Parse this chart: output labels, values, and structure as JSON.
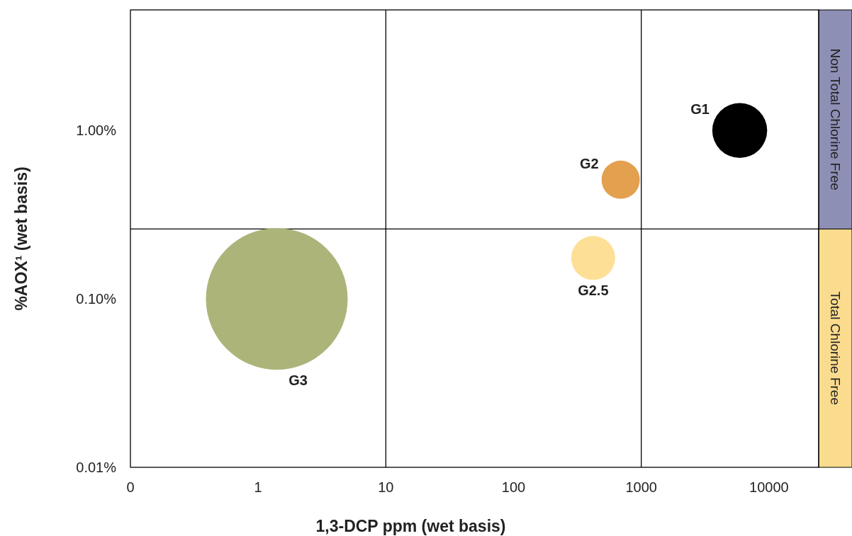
{
  "chart_data": {
    "type": "bubble",
    "xlabel": "1,3-DCP ppm (wet basis)",
    "ylabel": "%AOX¹ (wet basis)",
    "log": "xy",
    "grid": false,
    "marker": "circle",
    "xlim": [
      0.1,
      24500
    ],
    "xticks": [
      {
        "value": 0.1,
        "label": "0"
      },
      1,
      10,
      100,
      1000,
      10000
    ],
    "ylim": [
      0.01,
      5.2
    ],
    "yticks": [
      {
        "value": 0.01,
        "label": "0.01%"
      },
      {
        "value": 0.1,
        "label": "0.10%"
      },
      {
        "value": 1,
        "label": "1.00%"
      }
    ],
    "series": [
      {
        "name": "G1",
        "color": "#000000",
        "x": [
          5900
        ],
        "values": [
          1.0
        ],
        "sizes": [
          0.15
        ]
      },
      {
        "name": "G2",
        "color": "#e3a04f",
        "x": [
          690
        ],
        "values": [
          0.51
        ],
        "sizes": [
          0.073
        ]
      },
      {
        "name": "G2.5",
        "color": "#fddf96",
        "x": [
          420
        ],
        "values": [
          0.175
        ],
        "sizes": [
          0.096
        ]
      },
      {
        "name": "G3",
        "color": "#adb47a",
        "x": [
          1.4
        ],
        "values": [
          0.1
        ],
        "sizes": [
          1
        ]
      }
    ],
    "ref_lines": [
      {
        "axis": "x",
        "value": 10,
        "color": "#000000"
      },
      {
        "axis": "x",
        "value": 1000,
        "color": "#000000"
      },
      {
        "axis": "y",
        "value": 0.26,
        "color": "#000000"
      }
    ],
    "annotations": [
      "Non Total Chlorine Free",
      "Total Chlorine Free"
    ]
  }
}
